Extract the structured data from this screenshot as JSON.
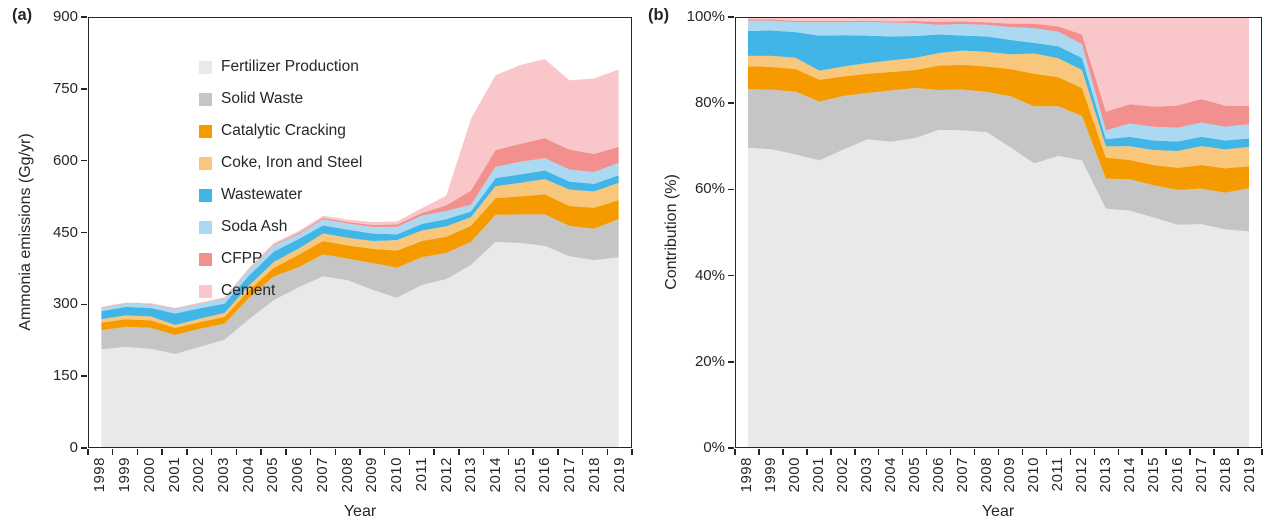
{
  "figure": {
    "panel_a": {
      "label": "(a)",
      "y_axis_title": "Ammonia emissions (Gg/yr)",
      "x_axis_title": "Year"
    },
    "panel_b": {
      "label": "(b)",
      "y_axis_title": "Contribution (%)",
      "x_axis_title": "Year"
    },
    "legend": [
      {
        "key": "fertilizer-production",
        "label": "Fertilizer Production",
        "color": "#E9E9E9"
      },
      {
        "key": "solid-waste",
        "label": "Solid Waste",
        "color": "#C5C5C5"
      },
      {
        "key": "catalytic-cracking",
        "label": "Catalytic Cracking",
        "color": "#F59B00"
      },
      {
        "key": "coke-iron-and-steel",
        "label": "Coke, Iron and Steel",
        "color": "#F9C77B"
      },
      {
        "key": "wastewater",
        "label": "Wastewater",
        "color": "#41B6E6"
      },
      {
        "key": "soda-ash",
        "label": "Soda Ash",
        "color": "#ABD9F2"
      },
      {
        "key": "cfpp",
        "label": "CFPP",
        "color": "#F2908F"
      },
      {
        "key": "cement",
        "label": "Cement",
        "color": "#F9C7C9"
      }
    ]
  },
  "chart_data": [
    {
      "type": "area",
      "stacked": true,
      "title": "(a) Ammonia emissions by source",
      "xlabel": "Year",
      "ylabel": "Ammonia emissions (Gg/yr)",
      "ylim": [
        0,
        900
      ],
      "grid": false,
      "legend_position": "inside top-left of panel (a)",
      "yticks": [
        {
          "v": 0,
          "label": "0"
        },
        {
          "v": 150,
          "label": "150"
        },
        {
          "v": 300,
          "label": "300"
        },
        {
          "v": 450,
          "label": "450"
        },
        {
          "v": 600,
          "label": "600"
        },
        {
          "v": 750,
          "label": "750"
        },
        {
          "v": 900,
          "label": "900"
        }
      ],
      "categories": [
        "1998",
        "1999",
        "2000",
        "2001",
        "2002",
        "2003",
        "2004",
        "2005",
        "2006",
        "2007",
        "2008",
        "2009",
        "2010",
        "2011",
        "2012",
        "2013",
        "2014",
        "2015",
        "2016",
        "2017",
        "2018",
        "2019"
      ],
      "series": [
        {
          "name": "Fertilizer Production",
          "color": "#E9E9E9",
          "values": [
            205,
            210,
            206,
            195,
            210,
            225,
            268,
            308,
            335,
            358,
            350,
            330,
            313,
            340,
            352,
            382,
            430,
            428,
            422,
            400,
            392,
            398
          ]
        },
        {
          "name": "Solid Waste",
          "color": "#C5C5C5",
          "values": [
            40,
            42,
            44,
            40,
            38,
            34,
            45,
            50,
            42,
            46,
            45,
            56,
            63,
            58,
            55,
            48,
            57,
            60,
            66,
            64,
            66,
            80
          ]
        },
        {
          "name": "Catalytic Cracking",
          "color": "#F59B00",
          "values": [
            16,
            16,
            16,
            15,
            14,
            14,
            16,
            18,
            26,
            28,
            28,
            30,
            36,
            34,
            34,
            34,
            35,
            38,
            42,
            42,
            44,
            40
          ]
        },
        {
          "name": "Coke, Iron and Steel",
          "color": "#F9C77B",
          "values": [
            7,
            8,
            8,
            6,
            7,
            8,
            10,
            12,
            13,
            16,
            16,
            16,
            22,
            22,
            22,
            18,
            25,
            28,
            32,
            34,
            34,
            36
          ]
        },
        {
          "name": "Wastewater",
          "color": "#41B6E6",
          "values": [
            17,
            18,
            18,
            24,
            22,
            20,
            21,
            22,
            20,
            17,
            17,
            16,
            12,
            14,
            15,
            12,
            17,
            18,
            18,
            17,
            16,
            16
          ]
        },
        {
          "name": "Soda Ash",
          "color": "#ABD9F2",
          "values": [
            7,
            7,
            7,
            9,
            9,
            10,
            12,
            13,
            10,
            13,
            13,
            14,
            16,
            17,
            17,
            14,
            24,
            26,
            26,
            25,
            25,
            26
          ]
        },
        {
          "name": "CFPP",
          "color": "#F2908F",
          "values": [
            1,
            1,
            1,
            1,
            1,
            1,
            1,
            2,
            3,
            3,
            3,
            4,
            5,
            6,
            12,
            30,
            35,
            38,
            42,
            42,
            38,
            34
          ]
        },
        {
          "name": "Cement",
          "color": "#F9C7C9",
          "values": [
            1,
            1,
            2,
            2,
            2,
            2,
            3,
            3,
            4,
            4,
            5,
            6,
            6,
            10,
            20,
            150,
            157,
            165,
            166,
            145,
            158,
            162
          ]
        }
      ]
    },
    {
      "type": "area",
      "stacked": true,
      "stacked_100_percent": true,
      "title": "(b) Contribution of each source",
      "xlabel": "Year",
      "ylabel": "Contribution (%)",
      "unit": "%",
      "ylim": [
        0,
        100
      ],
      "grid": false,
      "yticks": [
        {
          "v": 0,
          "label": "0%"
        },
        {
          "v": 20,
          "label": "20%"
        },
        {
          "v": 40,
          "label": "40%"
        },
        {
          "v": 60,
          "label": "60%"
        },
        {
          "v": 80,
          "label": "80%"
        },
        {
          "v": 100,
          "label": "100%"
        }
      ],
      "categories": [
        "1998",
        "1999",
        "2000",
        "2001",
        "2002",
        "2003",
        "2004",
        "2005",
        "2006",
        "2007",
        "2008",
        "2009",
        "2010",
        "2011",
        "2012",
        "2013",
        "2014",
        "2015",
        "2016",
        "2017",
        "2018",
        "2019"
      ],
      "series": [
        {
          "name": "Fertilizer Production",
          "color": "#E9E9E9",
          "values": [
            69.7,
            69.3,
            68.2,
            66.8,
            69.3,
            71.7,
            71.3,
            72.0,
            74.0,
            73.8,
            73.4,
            69.9,
            66.2,
            67.9,
            66.8,
            55.5,
            55.1,
            53.4,
            51.8,
            52.0,
            50.7,
            50.3
          ]
        },
        {
          "name": "Solid Waste",
          "color": "#C5C5C5",
          "values": [
            13.6,
            13.9,
            14.6,
            13.7,
            12.5,
            10.8,
            12.0,
            11.7,
            9.3,
            9.5,
            9.4,
            11.9,
            13.3,
            11.6,
            10.4,
            7.0,
            7.3,
            7.5,
            8.1,
            8.3,
            8.5,
            10.1
          ]
        },
        {
          "name": "Catalytic Cracking",
          "color": "#F59B00",
          "values": [
            5.4,
            5.3,
            5.3,
            5.1,
            4.6,
            4.5,
            4.3,
            4.2,
            5.7,
            5.8,
            5.9,
            6.4,
            7.6,
            6.8,
            6.5,
            4.9,
            4.5,
            4.7,
            5.2,
            5.5,
            5.7,
            5.1
          ]
        },
        {
          "name": "Coke, Iron and Steel",
          "color": "#F9C77B",
          "values": [
            2.4,
            2.6,
            2.6,
            2.1,
            2.3,
            2.5,
            2.7,
            2.8,
            2.9,
            3.3,
            3.4,
            3.4,
            4.7,
            4.4,
            4.2,
            2.6,
            3.2,
            3.5,
            3.9,
            4.4,
            4.4,
            4.5
          ]
        },
        {
          "name": "Wastewater",
          "color": "#41B6E6",
          "values": [
            5.8,
            5.9,
            6.0,
            8.2,
            7.3,
            6.4,
            5.6,
            5.1,
            4.4,
            3.5,
            3.6,
            3.4,
            2.5,
            2.8,
            2.8,
            1.7,
            2.2,
            2.2,
            2.2,
            2.2,
            2.1,
            2.0
          ]
        },
        {
          "name": "Soda Ash",
          "color": "#ABD9F2",
          "values": [
            2.4,
            2.3,
            2.3,
            3.1,
            3.0,
            3.2,
            3.2,
            3.0,
            2.2,
            2.7,
            2.7,
            3.0,
            3.4,
            3.4,
            3.2,
            2.0,
            3.1,
            3.2,
            3.2,
            3.3,
            3.2,
            3.3
          ]
        },
        {
          "name": "CFPP",
          "color": "#F2908F",
          "values": [
            0.3,
            0.3,
            0.3,
            0.3,
            0.3,
            0.3,
            0.3,
            0.5,
            0.7,
            0.6,
            0.6,
            0.8,
            1.1,
            1.2,
            2.3,
            4.4,
            4.5,
            4.7,
            5.2,
            5.5,
            4.9,
            4.3
          ]
        },
        {
          "name": "Cement",
          "color": "#F9C7C9",
          "values": [
            0.3,
            0.3,
            0.7,
            0.7,
            0.7,
            0.6,
            0.8,
            0.7,
            0.9,
            0.8,
            1.0,
            1.3,
            1.3,
            2.0,
            3.8,
            21.8,
            20.1,
            20.6,
            20.4,
            18.9,
            20.4,
            20.5
          ]
        }
      ]
    }
  ]
}
